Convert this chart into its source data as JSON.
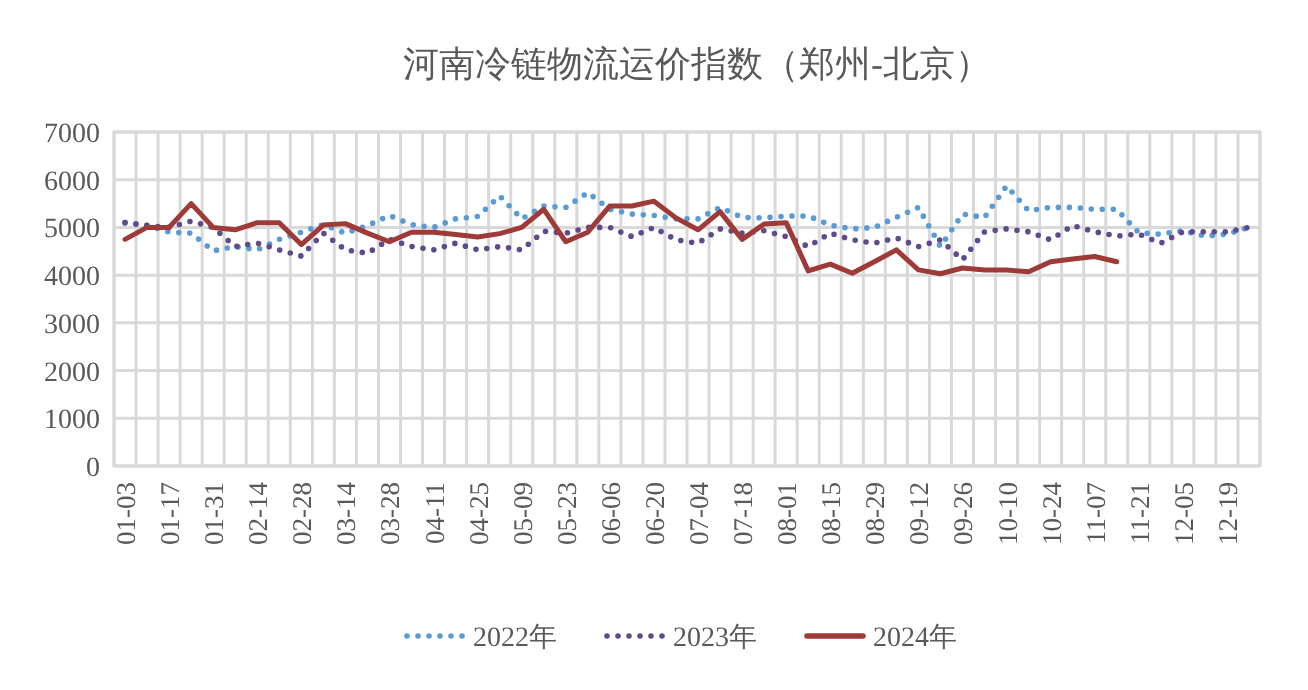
{
  "chart_data": {
    "type": "line",
    "title": "河南冷链物流运价指数（郑州-北京）",
    "categories": [
      "01-03",
      null,
      "01-17",
      null,
      "01-31",
      null,
      "02-14",
      null,
      "02-28",
      null,
      "03-14",
      null,
      "03-28",
      null,
      "04-11",
      null,
      "04-25",
      null,
      "05-09",
      null,
      "05-23",
      null,
      "06-06",
      null,
      "06-20",
      null,
      "07-04",
      null,
      "07-18",
      null,
      "08-01",
      null,
      "08-15",
      null,
      "08-29",
      null,
      "09-12",
      null,
      "09-26",
      null,
      "10-10",
      null,
      "10-24",
      null,
      "11-07",
      null,
      "11-21",
      null,
      "12-05",
      null,
      "12-19",
      null
    ],
    "ylim": [
      0,
      7000
    ],
    "yticks": [
      0,
      1000,
      2000,
      3000,
      4000,
      5000,
      6000,
      7000
    ],
    "grid": true,
    "legend": "bottom",
    "series": [
      {
        "name": "2022年",
        "color": "#5b9bd5",
        "line_style": "dotted",
        "values": [
          5100,
          5050,
          4900,
          4880,
          4510,
          4600,
          4530,
          4750,
          4900,
          5060,
          4880,
          5040,
          5250,
          5060,
          5000,
          5180,
          5230,
          5660,
          5180,
          5450,
          5420,
          5730,
          5380,
          5280,
          5250,
          5180,
          5180,
          5420,
          5210,
          5200,
          5240,
          5240,
          5050,
          4970,
          5000,
          5210,
          5420,
          4600,
          5280,
          5210,
          5870,
          5350,
          5420,
          5420,
          5380,
          5380,
          4890,
          4860,
          4930,
          4820,
          4860,
          5000
        ]
      },
      {
        "name": "2023年",
        "color": "#5f4b8b",
        "line_style": "dotted",
        "values": [
          5100,
          5040,
          5000,
          5130,
          5000,
          4600,
          4670,
          4530,
          4400,
          4880,
          4530,
          4460,
          4750,
          4600,
          4530,
          4670,
          4530,
          4600,
          4530,
          4920,
          4880,
          5000,
          5000,
          4810,
          5000,
          4740,
          4670,
          4970,
          4880,
          4930,
          4810,
          4600,
          4880,
          4740,
          4670,
          4780,
          4600,
          4740,
          4320,
          4910,
          4970,
          4910,
          4740,
          5040,
          4910,
          4820,
          4860,
          4670,
          4910,
          4910,
          4910,
          5000
        ]
      },
      {
        "name": "2024年",
        "color": "#9e3a38",
        "line_style": "solid",
        "values": [
          4750,
          5000,
          5000,
          5500,
          5000,
          4950,
          5100,
          5100,
          4640,
          5050,
          5080,
          4880,
          4700,
          4900,
          4900,
          4850,
          4800,
          4870,
          5000,
          5380,
          4700,
          4900,
          5450,
          5450,
          5550,
          5200,
          4950,
          5330,
          4750,
          5070,
          5100,
          4090,
          4230,
          4040,
          4280,
          4530,
          4110,
          4030,
          4150,
          4110,
          4110,
          4070,
          4280,
          4340,
          4390,
          4280,
          null,
          null,
          null,
          null,
          null,
          null
        ]
      }
    ]
  }
}
